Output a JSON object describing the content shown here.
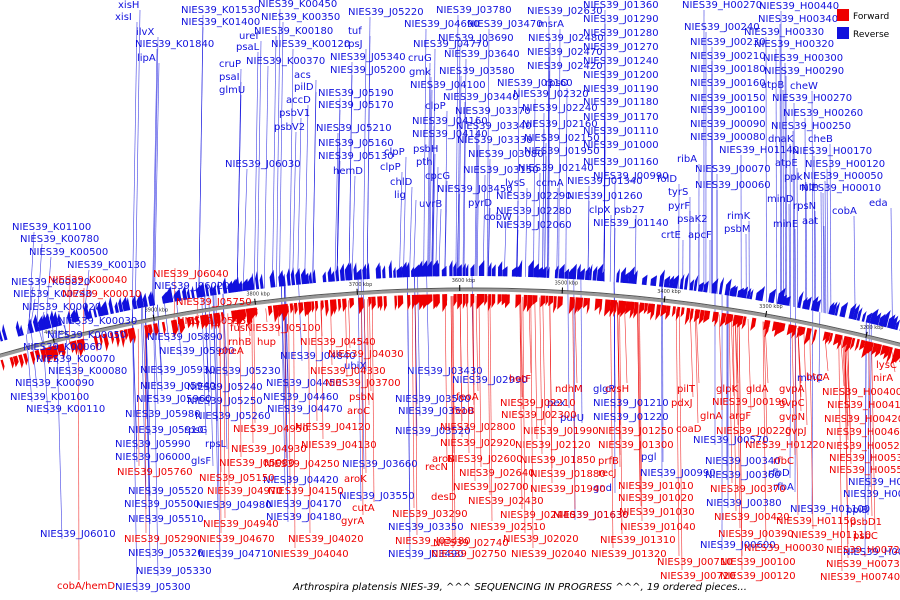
{
  "caption": "Arthrospira platensis NIES-39, ^^^ SEQUENCING IN PROGRESS ^^^, 19 ordered pieces...",
  "colors": {
    "forward": "#ee0000",
    "reverse": "#1111dd",
    "backbone": "#999999"
  },
  "legend": [
    {
      "label": "Forward",
      "color": "#ee0000"
    },
    {
      "label": "Reverse",
      "color": "#1111dd"
    }
  ],
  "scale_ticks": [
    "4100 kbp",
    "4000 kbp",
    "3900 kbp",
    "3800 kbp",
    "3700 kbp",
    "3600 kbp",
    "3500 kbp",
    "3400 kbp",
    "3300 kbp",
    "3200 kbp",
    "3100 kbp"
  ],
  "reverse_labels": [
    [
      "xisH",
      118,
      8
    ],
    [
      "xisI",
      115,
      20
    ],
    [
      "ilvX",
      136,
      35
    ],
    [
      "lipA",
      137,
      61
    ],
    [
      "NIES39_K01530",
      181,
      13
    ],
    [
      "NIES39_K01400",
      181,
      25
    ],
    [
      "NIES39_K01840",
      135,
      47
    ],
    [
      "uref",
      239,
      39
    ],
    [
      "psaL",
      236,
      50
    ],
    [
      "cruP",
      219,
      67
    ],
    [
      "psaI",
      219,
      80
    ],
    [
      "glmU",
      219,
      93
    ],
    [
      "NIES39_K00450",
      258,
      7
    ],
    [
      "NIES39_K00350",
      261,
      20
    ],
    [
      "NIES39_K00180",
      254,
      34
    ],
    [
      "NIES39_K00370",
      246,
      64
    ],
    [
      "NIES39_K00120",
      271,
      47
    ],
    [
      "acs",
      294,
      78
    ],
    [
      "pilD",
      294,
      90
    ],
    [
      "accD",
      286,
      103
    ],
    [
      "psbV1",
      279,
      116
    ],
    [
      "psbV2",
      274,
      130
    ],
    [
      "tuf",
      348,
      34
    ],
    [
      "rpsJ",
      344,
      47
    ],
    [
      "NIES39_J05220",
      348,
      15
    ],
    [
      "NIES39_J05340",
      330,
      60
    ],
    [
      "NIES39_J05200",
      330,
      73
    ],
    [
      "NIES39_J05190",
      318,
      96
    ],
    [
      "NIES39_J05170",
      318,
      108
    ],
    [
      "NIES39_J05210",
      316,
      131
    ],
    [
      "NIES39_J05160",
      318,
      146
    ],
    [
      "NIES39_J05130",
      318,
      159
    ],
    [
      "hemD",
      333,
      174
    ],
    [
      "NIES39_J06030",
      225,
      167
    ],
    [
      "NIES39_J04690",
      404,
      27
    ],
    [
      "NIES39_J04770",
      413,
      47
    ],
    [
      "cruG",
      408,
      61
    ],
    [
      "gmk",
      409,
      75
    ],
    [
      "NIES39_J04100",
      410,
      88
    ],
    [
      "clpP",
      425,
      109
    ],
    [
      "NIES39_J04160",
      412,
      124
    ],
    [
      "NIES39_J04140",
      412,
      137
    ],
    [
      "psbH",
      413,
      152
    ],
    [
      "clpP",
      384,
      155
    ],
    [
      "pth",
      416,
      165
    ],
    [
      "clpP",
      380,
      170
    ],
    [
      "cpcG",
      425,
      179
    ],
    [
      "chlD",
      390,
      185
    ],
    [
      "lig",
      394,
      198
    ],
    [
      "uvrB",
      419,
      207
    ],
    [
      "NIES39_J03780",
      436,
      13
    ],
    [
      "NIES39_J03470",
      467,
      27
    ],
    [
      "NIES39_J03690",
      438,
      41
    ],
    [
      "NIES39_J03640",
      444,
      57
    ],
    [
      "NIES39_J03580",
      439,
      74
    ],
    [
      "NIES39_J03440",
      443,
      100
    ],
    [
      "NIES39_J03370",
      455,
      114
    ],
    [
      "NIES39_J03340",
      456,
      129
    ],
    [
      "NIES39_J03330",
      457,
      143
    ],
    [
      "NIES39_J03080",
      468,
      157
    ],
    [
      "NIES39_J03150",
      463,
      173
    ],
    [
      "NIES39_J03450",
      437,
      192
    ],
    [
      "pyrD",
      468,
      206
    ],
    [
      "cobW",
      484,
      220
    ],
    [
      "lysS",
      505,
      186
    ],
    [
      "ccmA",
      536,
      186
    ],
    [
      "NIES39_J03160",
      497,
      86
    ],
    [
      "NIES39_J02320",
      513,
      97
    ],
    [
      "rpsO",
      545,
      86
    ],
    [
      "NIES39_J02630",
      527,
      14
    ],
    [
      "msrA",
      538,
      27
    ],
    [
      "NIES39_J02480",
      528,
      41
    ],
    [
      "NIES39_J02470",
      527,
      55
    ],
    [
      "NIES39_J02420",
      527,
      69
    ],
    [
      "NIES39_J02240",
      522,
      111
    ],
    [
      "NIES39_J02160",
      522,
      127
    ],
    [
      "NIES39_J02150",
      524,
      141
    ],
    [
      "NIES39_J01950",
      524,
      154
    ],
    [
      "NIES39_J02140",
      518,
      171
    ],
    [
      "NIES39_J02290",
      496,
      199
    ],
    [
      "NIES39_J02280",
      496,
      214
    ],
    [
      "NIES39_J02060",
      496,
      228
    ],
    [
      "NIES39_J01360",
      583,
      8
    ],
    [
      "NIES39_J01290",
      583,
      22
    ],
    [
      "NIES39_J01280",
      583,
      36
    ],
    [
      "NIES39_J01270",
      583,
      50
    ],
    [
      "NIES39_J01240",
      583,
      64
    ],
    [
      "NIES39_J01200",
      583,
      78
    ],
    [
      "NIES39_J01190",
      583,
      92
    ],
    [
      "NIES39_J01180",
      583,
      105
    ],
    [
      "NIES39_J01170",
      583,
      120
    ],
    [
      "NIES39_J01110",
      583,
      134
    ],
    [
      "NIES39_J01000",
      583,
      148
    ],
    [
      "NIES39_J01160",
      583,
      165
    ],
    [
      "NIES39_J01340",
      567,
      184
    ],
    [
      "NIES39_J01260",
      567,
      199
    ],
    [
      "clpX",
      589,
      213
    ],
    [
      "psb27",
      614,
      213
    ],
    [
      "NIES39_J01140",
      593,
      226
    ],
    [
      "folD",
      657,
      182
    ],
    [
      "tyrS",
      668,
      195
    ],
    [
      "pyrF",
      668,
      209
    ],
    [
      "psaK2",
      677,
      222
    ],
    [
      "crtE",
      661,
      238
    ],
    [
      "apcF",
      688,
      238
    ],
    [
      "ribA",
      677,
      162
    ],
    [
      "NIES39_J00990",
      593,
      179
    ],
    [
      "NIES39_H00270",
      682,
      8
    ],
    [
      "NIES39_H00440",
      759,
      9
    ],
    [
      "NIES39_H00340",
      758,
      22
    ],
    [
      "NIES39_H00330",
      744,
      35
    ],
    [
      "NIES39_H00320",
      754,
      47
    ],
    [
      "NIES39_H00300",
      763,
      61
    ],
    [
      "NIES39_H00290",
      764,
      74
    ],
    [
      "atpB",
      761,
      88
    ],
    [
      "cheW",
      790,
      89
    ],
    [
      "NIES39_H00270",
      772,
      101
    ],
    [
      "NIES39_H00260",
      783,
      116
    ],
    [
      "NIES39_H00250",
      771,
      129
    ],
    [
      "cheB",
      808,
      142
    ],
    [
      "dnaK",
      768,
      142
    ],
    [
      "NIES39_H00170",
      792,
      154
    ],
    [
      "atpE",
      775,
      166
    ],
    [
      "NIES39_H00120",
      805,
      167
    ],
    [
      "ppk",
      784,
      180
    ],
    [
      "NIES39_H00050",
      803,
      179
    ],
    [
      "mth",
      799,
      190
    ],
    [
      "NIES39_H00010",
      801,
      191
    ],
    [
      "rpsN",
      793,
      209
    ],
    [
      "aat",
      802,
      224
    ],
    [
      "cobA",
      832,
      214
    ],
    [
      "eda",
      869,
      206
    ],
    [
      "minD",
      767,
      202
    ],
    [
      "minE",
      773,
      227
    ],
    [
      "NIES39_J00240",
      684,
      30
    ],
    [
      "NIES39_J00230",
      690,
      45
    ],
    [
      "NIES39_J00210",
      690,
      59
    ],
    [
      "NIES39_J00180",
      690,
      72
    ],
    [
      "NIES39_J00160",
      690,
      86
    ],
    [
      "NIES39_J00150",
      690,
      101
    ],
    [
      "NIES39_J00100",
      690,
      113
    ],
    [
      "NIES39_J00090",
      690,
      127
    ],
    [
      "NIES39_J00080",
      690,
      140
    ],
    [
      "NIES39_H01140",
      719,
      153
    ],
    [
      "NIES39_J00070",
      695,
      172
    ],
    [
      "NIES39_J00060",
      695,
      188
    ],
    [
      "rimK",
      727,
      219
    ],
    [
      "psbM",
      724,
      232
    ],
    [
      "NIES39_K01100",
      12,
      230
    ],
    [
      "NIES39_K00780",
      20,
      242
    ],
    [
      "NIES39_K00500",
      29,
      255
    ],
    [
      "NIES39_K00130",
      67,
      268
    ],
    [
      "NIES39_K00820",
      11,
      285
    ],
    [
      "NIES39_K00740",
      13,
      297
    ],
    [
      "NIES39_K00020",
      22,
      310
    ],
    [
      "NIES39_K00030",
      58,
      324
    ],
    [
      "NIES39_K00050",
      47,
      338
    ],
    [
      "NIES39_K00060",
      23,
      350
    ],
    [
      "NIES39_K00070",
      36,
      362
    ],
    [
      "NIES39_K00080",
      48,
      374
    ],
    [
      "NIES39_K00090",
      15,
      386
    ],
    [
      "NIES39_K00100",
      10,
      400
    ],
    [
      "NIES39_K00110",
      26,
      412
    ],
    [
      "NIES39_J06020",
      154,
      289
    ],
    [
      "NIES39_J05890",
      147,
      340
    ],
    [
      "NIES39_J05900",
      159,
      354
    ],
    [
      "NIES39_J05930",
      140,
      373
    ],
    [
      "NIES39_J05940",
      140,
      389
    ],
    [
      "NIES39_J05960",
      136,
      402
    ],
    [
      "NIES39_J05980",
      125,
      417
    ],
    [
      "NIES39_J05910",
      128,
      433
    ],
    [
      "rpsG",
      184,
      433
    ],
    [
      "NIES39_J05990",
      115,
      447
    ],
    [
      "NIES39_J06000",
      115,
      460
    ],
    [
      "NIES39_J05520",
      128,
      494
    ],
    [
      "NIES39_J05500",
      124,
      507
    ],
    [
      "NIES39_J05510",
      128,
      522
    ],
    [
      "NIES39_J05320",
      128,
      556
    ],
    [
      "NIES39_J05330",
      136,
      574
    ],
    [
      "NIES39_J05300",
      115,
      590
    ],
    [
      "NIES39_J06010",
      40,
      537
    ],
    [
      "rpsL",
      205,
      447
    ],
    [
      "glsF",
      191,
      464
    ],
    [
      "NIES39_J05230",
      205,
      374
    ],
    [
      "NIES39_J05240",
      187,
      390
    ],
    [
      "NIES39_J05250",
      187,
      404
    ],
    [
      "NIES39_J05260",
      195,
      419
    ],
    [
      "NIES39_J04840",
      280,
      359
    ],
    [
      "NIES39_J04450",
      266,
      386
    ],
    [
      "NIES39_J04460",
      263,
      400
    ],
    [
      "NIES39_J04470",
      267,
      412
    ],
    [
      "NIES39_J04420",
      263,
      483
    ],
    [
      "NIES39_J04170",
      266,
      507
    ],
    [
      "NIES39_J04180",
      266,
      520
    ],
    [
      "NIES39_J04980",
      196,
      508
    ],
    [
      "NIES39_J04710",
      198,
      557
    ],
    [
      "ubiX",
      344,
      369
    ],
    [
      "NIES39_J03430",
      407,
      374
    ],
    [
      "NIES39_J03500",
      395,
      402
    ],
    [
      "NIES39_J03510",
      398,
      414
    ],
    [
      "NIES39_J03520",
      395,
      434
    ],
    [
      "NIES39_J03660",
      342,
      467
    ],
    [
      "NIES39_J03550",
      339,
      499
    ],
    [
      "NIES39_J03350",
      388,
      530
    ],
    [
      "NIES39_J03490",
      388,
      557
    ],
    [
      "NIES39_J02990",
      452,
      383
    ],
    [
      "glgP",
      593,
      392
    ],
    [
      "purU",
      560,
      421
    ],
    [
      "pex",
      547,
      406
    ],
    [
      "NIES39_J01210",
      593,
      406
    ],
    [
      "NIES39_J01220",
      593,
      420
    ],
    [
      "gnd",
      593,
      491
    ],
    [
      "NIES39_J01630",
      553,
      518
    ],
    [
      "NIES39_J00990",
      640,
      476
    ],
    [
      "pgl",
      641,
      460
    ],
    [
      "NIES39_J00570",
      693,
      443
    ],
    [
      "NIES39_J00340",
      705,
      464
    ],
    [
      "NIES39_J00360",
      705,
      478
    ],
    [
      "NIES39_J00380",
      706,
      506
    ],
    [
      "NIES39_J00600",
      700,
      548
    ],
    [
      "rfbD",
      768,
      476
    ],
    [
      "rfbA",
      773,
      490
    ],
    [
      "minC",
      797,
      381
    ],
    [
      "NIES39_H00560",
      843,
      555
    ],
    [
      "NIES39_H00590",
      848,
      485
    ],
    [
      "NIES39_H00620",
      843,
      497
    ],
    [
      "ppiB",
      846,
      513
    ],
    [
      "NIES39_H01100",
      790,
      512
    ]
  ],
  "forward_labels": [
    [
      "NIES39_J06040",
      153,
      277
    ],
    [
      "NIES39_K00040",
      48,
      283
    ],
    [
      "NIES39_K00010",
      62,
      297
    ],
    [
      "NIES39_J05750",
      176,
      305
    ],
    [
      "NIES39_J05950",
      177,
      324
    ],
    [
      "NIES39_J05100",
      245,
      331
    ],
    [
      "rnhB",
      228,
      345
    ],
    [
      "hup",
      257,
      345
    ],
    [
      "rne",
      236,
      319
    ],
    [
      "fus",
      230,
      331
    ],
    [
      "pheA",
      218,
      354
    ],
    [
      "NIES39_J04540",
      300,
      345
    ],
    [
      "NIES39_J04030",
      328,
      357
    ],
    [
      "NIES39_J04330",
      310,
      374
    ],
    [
      "NIES39_J03700",
      325,
      386
    ],
    [
      "psbN",
      349,
      400
    ],
    [
      "aroC",
      347,
      414
    ],
    [
      "NIES39_J04120",
      295,
      430
    ],
    [
      "NIES39_J04130",
      301,
      448
    ],
    [
      "NIES39_J04250",
      264,
      467
    ],
    [
      "aroK",
      344,
      482
    ],
    [
      "NIES39_J04150",
      268,
      494
    ],
    [
      "cutA",
      352,
      511
    ],
    [
      "gyrA",
      341,
      524
    ],
    [
      "NIES39_J04020",
      288,
      542
    ],
    [
      "NIES39_J04040",
      273,
      557
    ],
    [
      "NIES39_J04950",
      233,
      432
    ],
    [
      "NIES39_J04930",
      231,
      452
    ],
    [
      "NIES39_J05080",
      219,
      466
    ],
    [
      "NIES39_J05150",
      199,
      481
    ],
    [
      "NIES39_J04970",
      207,
      494
    ],
    [
      "NIES39_J04940",
      203,
      527
    ],
    [
      "NIES39_J04670",
      199,
      542
    ],
    [
      "NIES39_J05290",
      124,
      542
    ],
    [
      "NIES39_J05760",
      117,
      475
    ],
    [
      "cobA/hemD",
      57,
      589
    ],
    [
      "hetF",
      509,
      382
    ],
    [
      "feoA",
      456,
      400
    ],
    [
      "feoB",
      452,
      414
    ],
    [
      "NIES39_J02920",
      440,
      446
    ],
    [
      "NIES39_J02800",
      440,
      430
    ],
    [
      "NIES39_J02600",
      447,
      462
    ],
    [
      "recN",
      425,
      470
    ],
    [
      "aroB",
      432,
      462
    ],
    [
      "desD",
      431,
      500
    ],
    [
      "NIES39_J03290",
      392,
      517
    ],
    [
      "NIES39_J03480",
      395,
      544
    ],
    [
      "NIES39_J02640",
      459,
      476
    ],
    [
      "NIES39_J02700",
      453,
      490
    ],
    [
      "NIES39_J02430",
      468,
      504
    ],
    [
      "NIES39_J02510",
      470,
      530
    ],
    [
      "NIES39_J02740",
      433,
      546
    ],
    [
      "NIES39_J02750",
      431,
      557
    ],
    [
      "NIES39_J02020",
      503,
      542
    ],
    [
      "NIES39_J02040",
      511,
      557
    ],
    [
      "NIES39_J02440",
      500,
      518
    ],
    [
      "NIES39_J02210",
      500,
      406
    ],
    [
      "NIES39_J02300",
      501,
      418
    ],
    [
      "ndhM",
      555,
      392
    ],
    [
      "NIES39_J01990",
      523,
      434
    ],
    [
      "NIES39_J02120",
      515,
      448
    ],
    [
      "NIES39_J01850",
      520,
      463
    ],
    [
      "NIES39_J01880",
      530,
      477
    ],
    [
      "NIES39_J01940",
      530,
      492
    ],
    [
      "recJ",
      598,
      476
    ],
    [
      "prfB",
      598,
      464
    ],
    [
      "NIES39_J01630",
      553,
      518
    ],
    [
      "cvsH",
      605,
      392
    ],
    [
      "pilT",
      677,
      392
    ],
    [
      "pdxJ",
      671,
      406
    ],
    [
      "NIES39_J01250",
      598,
      434
    ],
    [
      "NIES39_J01300",
      598,
      448
    ],
    [
      "coaD",
      676,
      432
    ],
    [
      "NIES39_J01010",
      618,
      489
    ],
    [
      "NIES39_J01020",
      618,
      501
    ],
    [
      "NIES39_J01030",
      619,
      515
    ],
    [
      "NIES39_J01040",
      620,
      530
    ],
    [
      "NIES39_J01310",
      600,
      543
    ],
    [
      "NIES39_J01320",
      591,
      557
    ],
    [
      "NIES39_J00710",
      657,
      565
    ],
    [
      "NIES39_J00720",
      660,
      579
    ],
    [
      "glnA",
      700,
      419
    ],
    [
      "argF",
      729,
      419
    ],
    [
      "glpK",
      716,
      392
    ],
    [
      "gldA",
      746,
      392
    ],
    [
      "NIES39_J00190",
      712,
      405
    ],
    [
      "NIES39_J00220",
      716,
      434
    ],
    [
      "NIES39_J00370",
      710,
      492
    ],
    [
      "NIES39_J00420",
      714,
      520
    ],
    [
      "NIES39_J00390",
      718,
      537
    ],
    [
      "NIES39_J00100",
      720,
      565
    ],
    [
      "NIES39_J00120",
      720,
      579
    ],
    [
      "NIES39_H00030",
      744,
      551
    ],
    [
      "rfbC",
      773,
      464
    ],
    [
      "NIES39_H01220",
      745,
      448
    ],
    [
      "gvpA",
      779,
      392
    ],
    [
      "gvpC",
      779,
      406
    ],
    [
      "gvpN",
      779,
      420
    ],
    [
      "gvpJ",
      785,
      434
    ],
    [
      "NIES39_H01150",
      776,
      524
    ],
    [
      "NIES39_H01110",
      791,
      538
    ],
    [
      "btpA",
      806,
      380
    ],
    [
      "lysC",
      876,
      368
    ],
    [
      "nirA",
      873,
      381
    ],
    [
      "NIES39_H00400",
      822,
      395
    ],
    [
      "NIES39_H00410",
      827,
      408
    ],
    [
      "NIES39_H00420",
      824,
      422
    ],
    [
      "NIES39_H00460",
      826,
      435
    ],
    [
      "NIES39_H00520",
      826,
      449
    ],
    [
      "NIES39_H00530",
      829,
      461
    ],
    [
      "NIES39_H00550",
      829,
      473
    ],
    [
      "psbD1",
      850,
      525
    ],
    [
      "psbC",
      853,
      539
    ],
    [
      "NIES39_H00720",
      826,
      553
    ],
    [
      "NIES39_H00730",
      826,
      567
    ],
    [
      "NIES39_H00740",
      820,
      580
    ]
  ]
}
